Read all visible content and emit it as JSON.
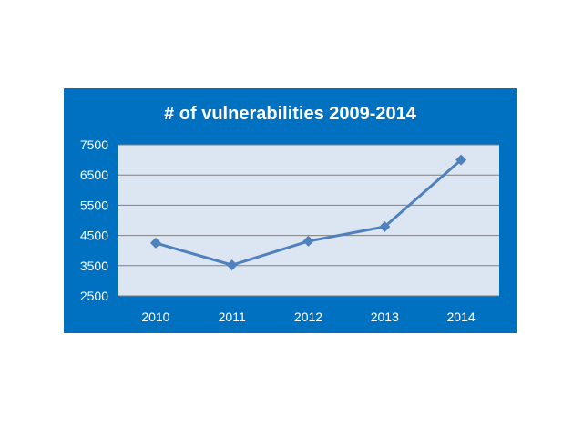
{
  "chart_data": {
    "type": "line",
    "title": "# of vulnerabilities 2009-2014",
    "xlabel": "",
    "ylabel": "",
    "categories": [
      "2010",
      "2011",
      "2012",
      "2013",
      "2014"
    ],
    "series": [
      {
        "values": [
          4250,
          3520,
          4310,
          4790,
          7000
        ]
      }
    ],
    "ylim": [
      2500,
      7500
    ],
    "yticks": [
      "7500",
      "6500",
      "5500",
      "4500",
      "3500",
      "2500"
    ],
    "grid": true,
    "legend": "none",
    "colors": {
      "frame": "#0070c0",
      "plot_area": "#dce6f2",
      "line": "#4f81bd",
      "text": "#ffffff"
    }
  }
}
